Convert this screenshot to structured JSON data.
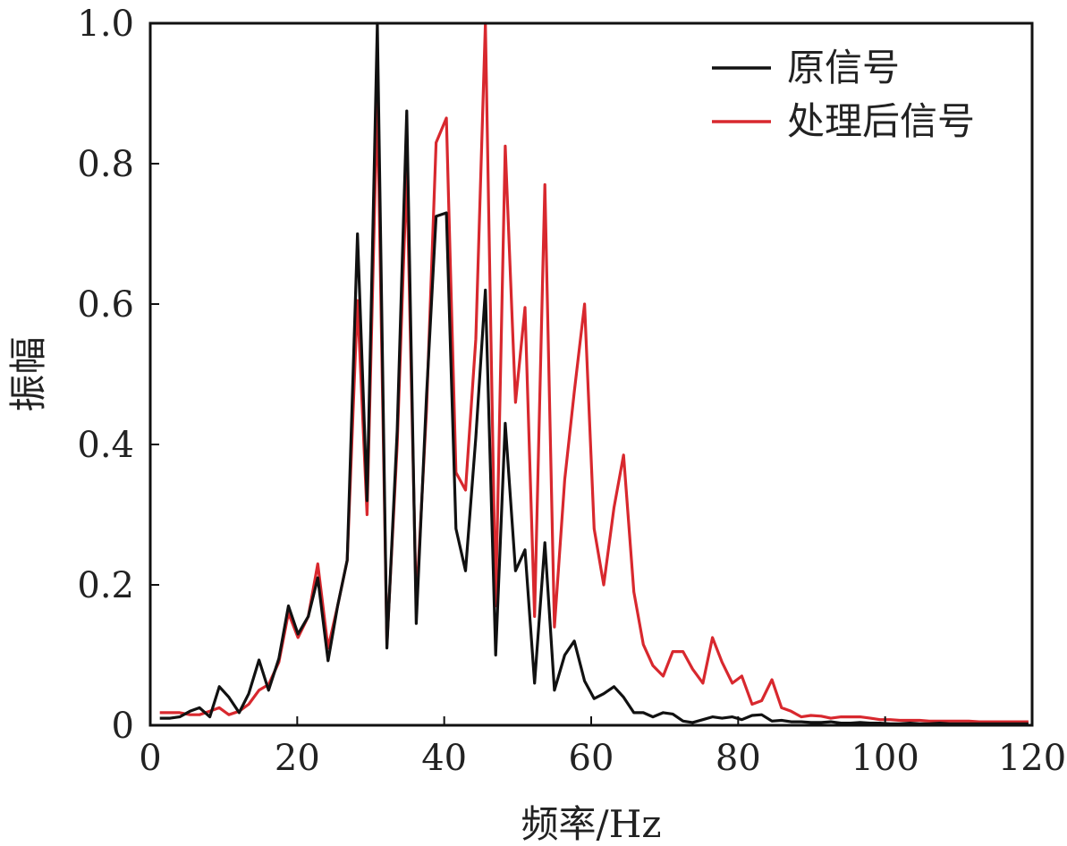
{
  "chart_data": {
    "type": "line",
    "xlabel": "频率/Hz",
    "ylabel": "振幅",
    "xlim": [
      0,
      120
    ],
    "ylim": [
      0,
      1.0
    ],
    "x_ticks": [
      0,
      20,
      40,
      60,
      80,
      100,
      120
    ],
    "y_ticks": [
      0,
      0.2,
      0.4,
      0.6,
      0.8,
      1.0
    ],
    "x_tick_labels": [
      "0",
      "20",
      "40",
      "60",
      "80",
      "100",
      "120"
    ],
    "y_tick_labels": [
      "0",
      "0.2",
      "0.4",
      "0.6",
      "0.8",
      "1.0"
    ],
    "grid": false,
    "legend_position": "top-right",
    "series": [
      {
        "name": "原信号",
        "color": "#111111",
        "x": [
          1.3,
          2.7,
          4.0,
          5.4,
          6.7,
          8.1,
          9.4,
          10.7,
          12.1,
          13.4,
          14.8,
          16.1,
          17.5,
          18.8,
          20.1,
          21.5,
          22.8,
          24.2,
          25.5,
          26.8,
          28.2,
          29.5,
          30.9,
          32.2,
          33.6,
          34.9,
          36.2,
          37.6,
          38.9,
          40.3,
          41.6,
          42.9,
          44.3,
          45.6,
          47.0,
          48.3,
          49.7,
          51.0,
          52.3,
          53.7,
          55.0,
          56.4,
          57.7,
          59.1,
          60.4,
          61.7,
          63.1,
          64.4,
          65.8,
          67.1,
          68.4,
          69.8,
          71.1,
          72.5,
          73.8,
          75.2,
          76.5,
          77.8,
          79.2,
          80.5,
          81.9,
          83.2,
          84.6,
          85.9,
          87.2,
          88.6,
          89.9,
          91.3,
          92.6,
          94.0,
          95.3,
          96.6,
          98.0,
          99.3,
          100.7,
          102.0,
          103.4,
          104.7,
          106.0,
          107.4,
          108.7,
          110.1,
          111.4,
          112.8,
          114.1,
          115.4,
          116.8,
          118.1,
          119.5
        ],
        "values": [
          0.01,
          0.01,
          0.012,
          0.02,
          0.025,
          0.012,
          0.055,
          0.04,
          0.018,
          0.045,
          0.093,
          0.05,
          0.095,
          0.17,
          0.13,
          0.155,
          0.21,
          0.092,
          0.17,
          0.235,
          0.7,
          0.32,
          1.0,
          0.11,
          0.42,
          0.875,
          0.145,
          0.47,
          0.725,
          0.73,
          0.28,
          0.22,
          0.41,
          0.62,
          0.1,
          0.43,
          0.22,
          0.25,
          0.06,
          0.26,
          0.05,
          0.1,
          0.12,
          0.063,
          0.038,
          0.045,
          0.055,
          0.04,
          0.018,
          0.018,
          0.012,
          0.018,
          0.016,
          0.006,
          0.004,
          0.008,
          0.012,
          0.01,
          0.012,
          0.008,
          0.014,
          0.015,
          0.006,
          0.007,
          0.005,
          0.005,
          0.004,
          0.004,
          0.005,
          0.003,
          0.003,
          0.004,
          0.003,
          0.003,
          0.002,
          0.002,
          0.003,
          0.002,
          0.002,
          0.003,
          0.002,
          0.002,
          0.002,
          0.002,
          0.002,
          0.002,
          0.002,
          0.002,
          0.002
        ]
      },
      {
        "name": "处理后信号",
        "color": "#d8282e",
        "x": [
          1.3,
          2.7,
          4.0,
          5.4,
          6.7,
          8.1,
          9.4,
          10.7,
          12.1,
          13.4,
          14.8,
          16.1,
          17.5,
          18.8,
          20.1,
          21.5,
          22.8,
          24.2,
          25.5,
          26.8,
          28.2,
          29.5,
          30.9,
          32.2,
          33.6,
          34.9,
          36.2,
          37.6,
          38.9,
          40.3,
          41.6,
          42.9,
          44.3,
          45.6,
          47.0,
          48.3,
          49.7,
          51.0,
          52.3,
          53.7,
          55.0,
          56.4,
          57.7,
          59.1,
          60.4,
          61.7,
          63.1,
          64.4,
          65.8,
          67.1,
          68.4,
          69.8,
          71.1,
          72.5,
          73.8,
          75.2,
          76.5,
          77.8,
          79.2,
          80.5,
          81.9,
          83.2,
          84.6,
          85.9,
          87.2,
          88.6,
          89.9,
          91.3,
          92.6,
          94.0,
          95.3,
          96.6,
          98.0,
          99.3,
          100.7,
          102.0,
          103.4,
          104.7,
          106.0,
          107.4,
          108.7,
          110.1,
          111.4,
          112.8,
          114.1,
          115.4,
          116.8,
          118.1,
          119.5
        ],
        "values": [
          0.018,
          0.018,
          0.018,
          0.015,
          0.015,
          0.02,
          0.025,
          0.015,
          0.02,
          0.03,
          0.05,
          0.058,
          0.09,
          0.16,
          0.125,
          0.155,
          0.23,
          0.11,
          0.17,
          0.235,
          0.605,
          0.3,
          0.895,
          0.115,
          0.4,
          0.79,
          0.17,
          0.45,
          0.83,
          0.865,
          0.36,
          0.335,
          0.55,
          1.0,
          0.17,
          0.825,
          0.46,
          0.595,
          0.155,
          0.77,
          0.14,
          0.35,
          0.475,
          0.6,
          0.28,
          0.2,
          0.31,
          0.385,
          0.19,
          0.115,
          0.085,
          0.07,
          0.105,
          0.105,
          0.08,
          0.06,
          0.125,
          0.09,
          0.06,
          0.07,
          0.03,
          0.035,
          0.065,
          0.025,
          0.02,
          0.012,
          0.014,
          0.013,
          0.01,
          0.012,
          0.012,
          0.012,
          0.01,
          0.008,
          0.008,
          0.007,
          0.007,
          0.007,
          0.006,
          0.006,
          0.006,
          0.006,
          0.006,
          0.005,
          0.005,
          0.005,
          0.005,
          0.005,
          0.005
        ]
      }
    ]
  }
}
